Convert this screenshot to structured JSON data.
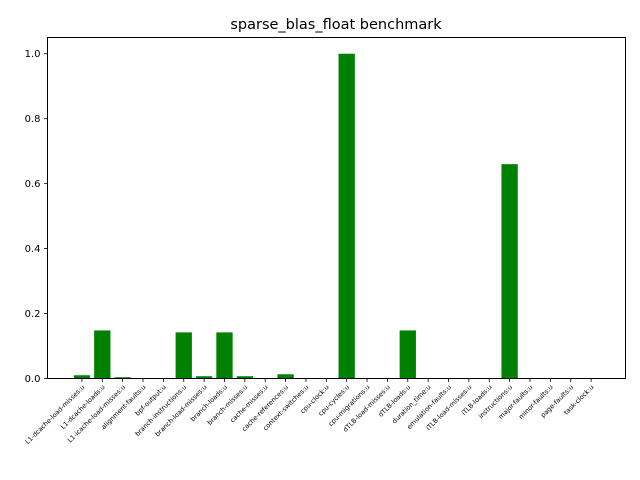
{
  "chart_data": {
    "type": "bar",
    "title": "sparse_blas_float benchmark",
    "xlabel": "",
    "ylabel": "",
    "ylim": [
      0,
      1.05
    ],
    "yticks": [
      "0.0",
      "0.2",
      "0.4",
      "0.6",
      "0.8",
      "1.0"
    ],
    "grid": false,
    "legend": "none",
    "bar_color": "#008000",
    "categories": [
      "L1-dcache-load-misses:u",
      "L1-dcache-loads:u",
      "L1-icache-load-misses:u",
      "alignment-faults:u",
      "bpf-output:u",
      "branch-instructions:u",
      "branch-load-misses:u",
      "branch-loads:u",
      "branch-misses:u",
      "cache-misses:u",
      "cache-references:u",
      "context-switches:u",
      "cpu-clock:u",
      "cpu-cycles:u",
      "cpu-migrations:u",
      "dTLB-load-misses:u",
      "dTLB-loads:u",
      "duration_time:u",
      "emulation-faults:u",
      "iTLB-load-misses:u",
      "iTLB-loads:u",
      "instructions:u",
      "major-faults:u",
      "minor-faults:u",
      "page-faults:u",
      "task-clock:u"
    ],
    "values": [
      0.01,
      0.148,
      0.004,
      0,
      0,
      0.142,
      0.007,
      0.142,
      0.007,
      0,
      0.013,
      0,
      0,
      1.0,
      0,
      0,
      0.148,
      0,
      0,
      0,
      0,
      0.66,
      0,
      0,
      0,
      0
    ]
  }
}
